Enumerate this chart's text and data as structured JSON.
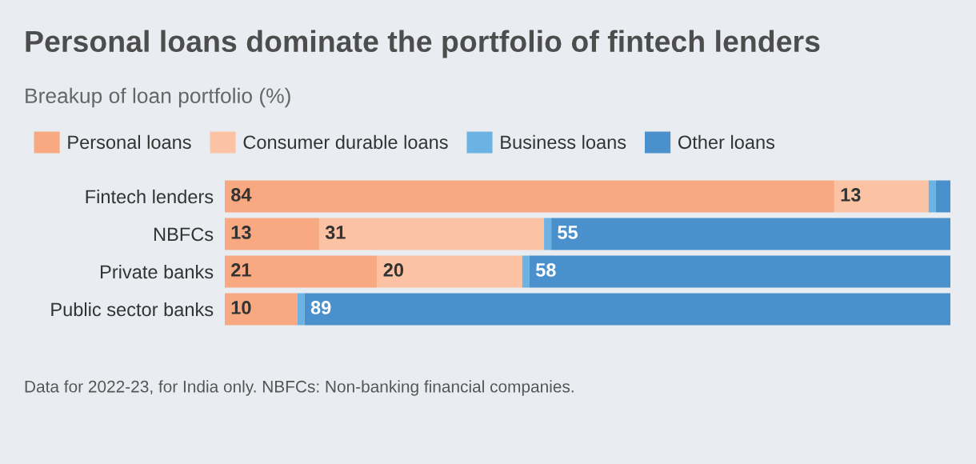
{
  "chart_data": {
    "type": "bar",
    "orientation": "horizontal",
    "stacked": true,
    "title": "Personal loans dominate the portfolio of fintech lenders",
    "subtitle": "Breakup of loan portfolio (%)",
    "categories": [
      "Fintech lenders",
      "NBFCs",
      "Private banks",
      "Public sector banks"
    ],
    "series": [
      {
        "name": "Personal loans",
        "color": "#f8a982",
        "values": [
          84,
          13,
          21,
          10
        ],
        "value_labels": [
          "84",
          "13",
          "21",
          "10"
        ]
      },
      {
        "name": "Consumer durable loans",
        "color": "#fbc3a4",
        "values": [
          13,
          31,
          20,
          0
        ],
        "value_labels": [
          "13",
          "31",
          "20",
          null
        ]
      },
      {
        "name": "Business loans",
        "color": "#6cb2e2",
        "values": [
          1,
          1,
          1,
          1
        ],
        "value_labels": [
          null,
          null,
          null,
          null
        ]
      },
      {
        "name": "Other loans",
        "color": "#4a90cd",
        "values": [
          2,
          55,
          58,
          89
        ],
        "value_labels": [
          null,
          "55",
          "58",
          "89"
        ]
      }
    ],
    "xlim": [
      0,
      100
    ],
    "tick_labels": false,
    "grid": false,
    "legend": "top left",
    "annotations": [
      "Data for 2022-23, for India only. NBFCs: Non-banking financial companies."
    ]
  }
}
